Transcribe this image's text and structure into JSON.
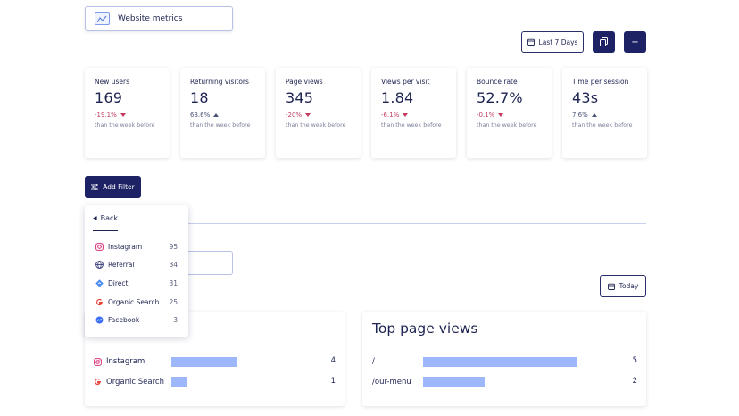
{
  "header": {
    "title": "Website metrics",
    "range_label": "Last 7 Days",
    "copy_icon": "copy-icon",
    "add_icon": "plus-icon"
  },
  "metrics": [
    {
      "label": "New users",
      "value": "169",
      "change": "-19.1%",
      "direction": "down",
      "sub": "than the week before"
    },
    {
      "label": "Returning visitors",
      "value": "18",
      "change": "63.6%",
      "direction": "up",
      "sub": "than the week before"
    },
    {
      "label": "Page views",
      "value": "345",
      "change": "-20%",
      "direction": "down",
      "sub": "than the week before"
    },
    {
      "label": "Views per visit",
      "value": "1.84",
      "change": "-6.1%",
      "direction": "down",
      "sub": "than the week before"
    },
    {
      "label": "Bounce rate",
      "value": "52.7%",
      "change": "-0.1%",
      "direction": "down",
      "sub": "than the week before"
    },
    {
      "label": "Time per session",
      "value": "43s",
      "change": "7.6%",
      "direction": "up",
      "sub": "than the week before"
    }
  ],
  "filter": {
    "button_label": "Add Filter",
    "back_label": "Back",
    "options": [
      {
        "name": "Instagram",
        "count": "95",
        "icon": "instagram-icon"
      },
      {
        "name": "Referral",
        "count": "34",
        "icon": "globe-icon"
      },
      {
        "name": "Direct",
        "count": "31",
        "icon": "direct-icon"
      },
      {
        "name": "Organic Search",
        "count": "25",
        "icon": "google-icon"
      },
      {
        "name": "Facebook",
        "count": "3",
        "icon": "facebook-icon"
      }
    ]
  },
  "today_label": "Today",
  "top_sources": {
    "rows": [
      {
        "name": "Instagram",
        "count": "4",
        "fraction": 1.0,
        "icon": "instagram-icon"
      },
      {
        "name": "Organic Search",
        "count": "1",
        "fraction": 0.25,
        "icon": "google-icon"
      }
    ]
  },
  "top_pages": {
    "title": "Top page views",
    "rows": [
      {
        "name": "/",
        "count": "5",
        "fraction": 1.0
      },
      {
        "name": "/our-menu",
        "count": "2",
        "fraction": 0.4
      }
    ]
  },
  "colors": {
    "primary": "#1c2263",
    "negative": "#c23a5e",
    "bar": "#9eb7fb"
  }
}
